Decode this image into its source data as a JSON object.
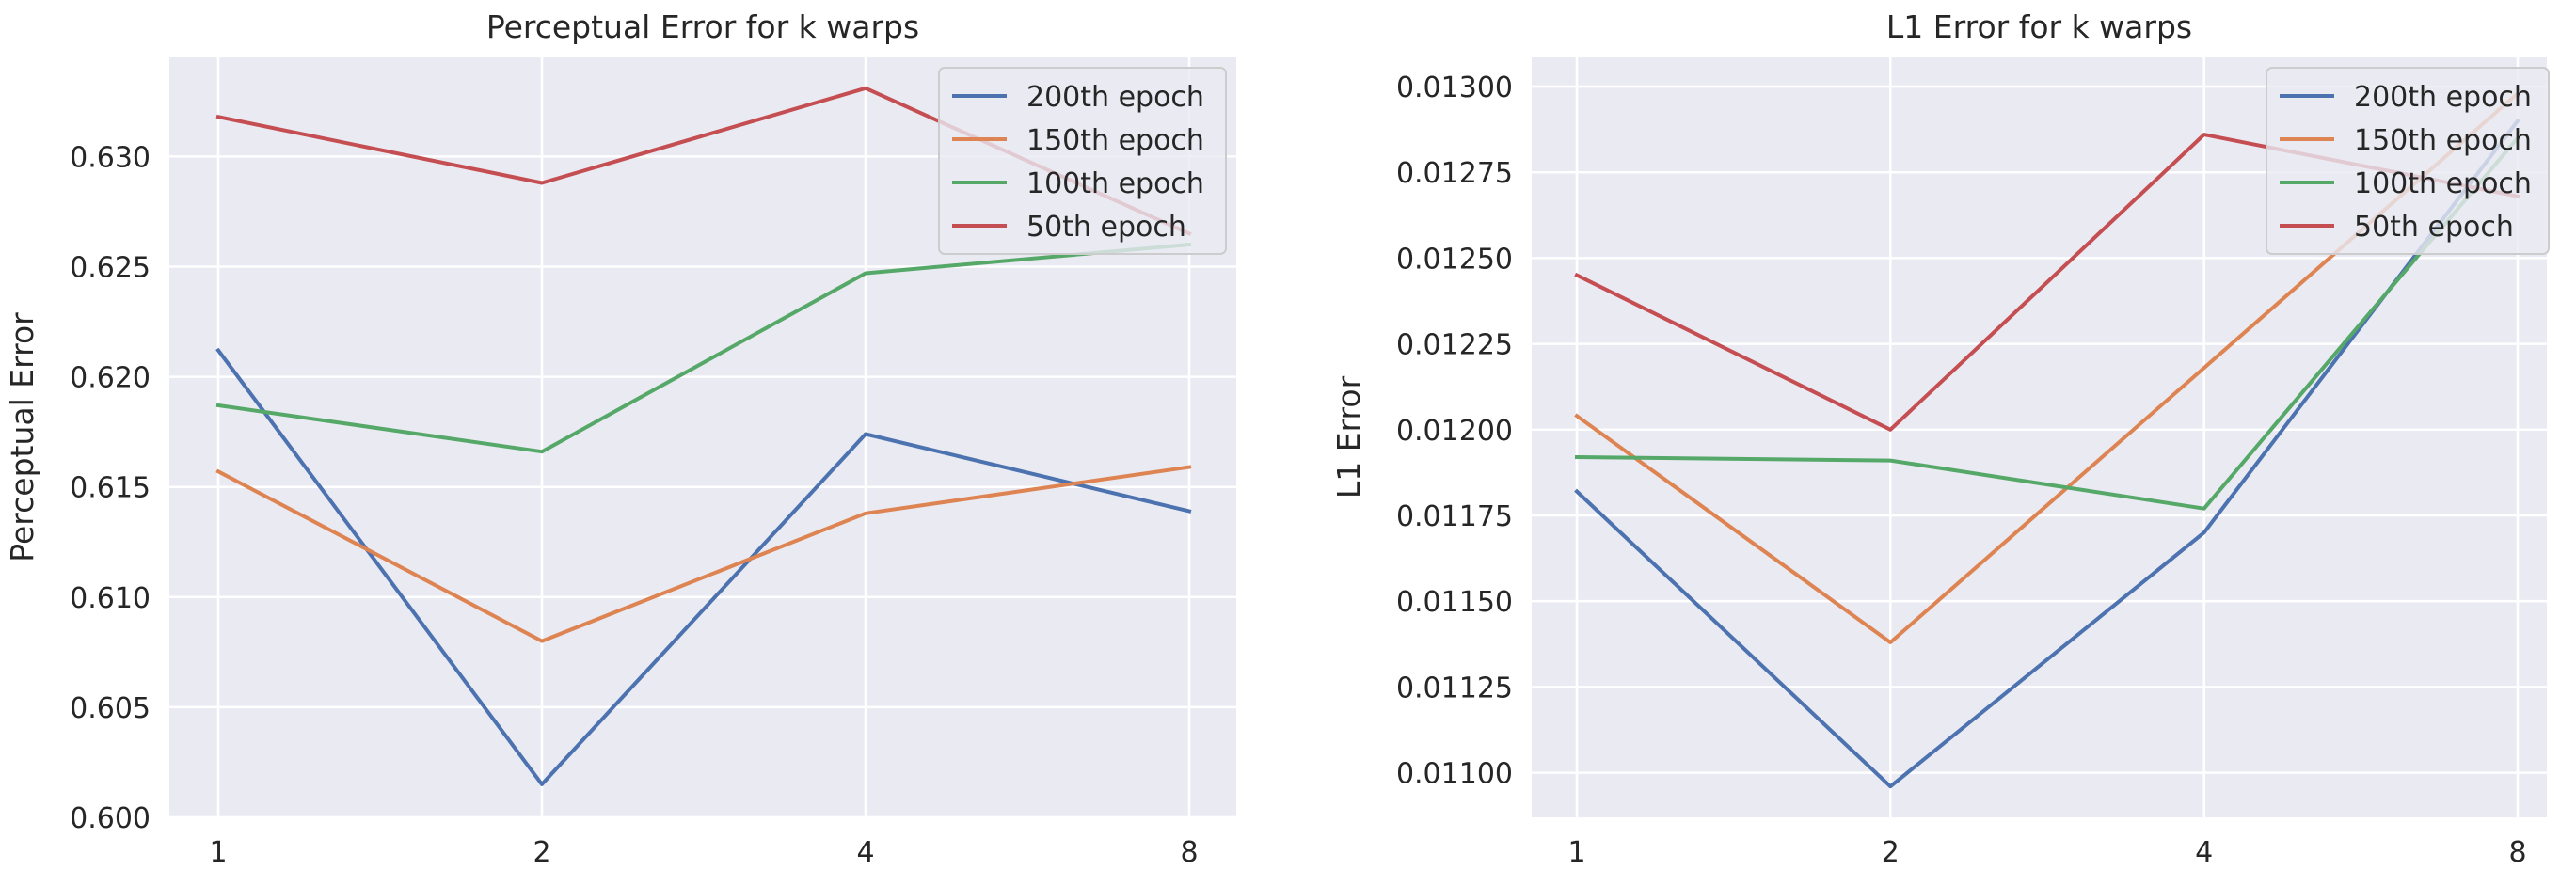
{
  "chart_data": [
    {
      "type": "line",
      "title": "Perceptual Error for k warps",
      "xlabel": "",
      "ylabel": "Perceptual Error",
      "categories": [
        "1",
        "2",
        "4",
        "8"
      ],
      "ylim": [
        0.6,
        0.6345
      ],
      "yticks": [
        "0.600",
        "0.605",
        "0.610",
        "0.615",
        "0.620",
        "0.625",
        "0.630"
      ],
      "grid": true,
      "legend_position": "top-right",
      "series": [
        {
          "name": "200th epoch",
          "color": "#4c72b0",
          "values": [
            0.6212,
            0.6015,
            0.6174,
            0.6139
          ]
        },
        {
          "name": "150th epoch",
          "color": "#dd8452",
          "values": [
            0.6157,
            0.608,
            0.6138,
            0.6159
          ]
        },
        {
          "name": "100th epoch",
          "color": "#55a868",
          "values": [
            0.6187,
            0.6166,
            0.6247,
            0.626
          ]
        },
        {
          "name": "50th epoch",
          "color": "#c44e52",
          "values": [
            0.6318,
            0.6288,
            0.6331,
            0.6265
          ]
        }
      ]
    },
    {
      "type": "line",
      "title": "L1 Error for k warps",
      "xlabel": "",
      "ylabel": "L1 Error",
      "categories": [
        "1",
        "2",
        "4",
        "8"
      ],
      "ylim": [
        0.01087,
        0.013085
      ],
      "yticks": [
        "0.01100",
        "0.01125",
        "0.01150",
        "0.01175",
        "0.01200",
        "0.01225",
        "0.01250",
        "0.01275",
        "0.01300"
      ],
      "grid": true,
      "legend_position": "top-right",
      "series": [
        {
          "name": "200th epoch",
          "color": "#4c72b0",
          "values": [
            0.01182,
            0.01096,
            0.0117,
            0.0129
          ]
        },
        {
          "name": "150th epoch",
          "color": "#dd8452",
          "values": [
            0.01204,
            0.01138,
            0.01218,
            0.01298
          ]
        },
        {
          "name": "100th epoch",
          "color": "#55a868",
          "values": [
            0.01192,
            0.01191,
            0.01177,
            0.01285
          ]
        },
        {
          "name": "50th epoch",
          "color": "#c44e52",
          "values": [
            0.01245,
            0.012,
            0.01286,
            0.01268
          ]
        }
      ]
    }
  ],
  "colors": {
    "plot_background": "#eaeaf2",
    "grid": "#ffffff",
    "text": "#262626"
  }
}
